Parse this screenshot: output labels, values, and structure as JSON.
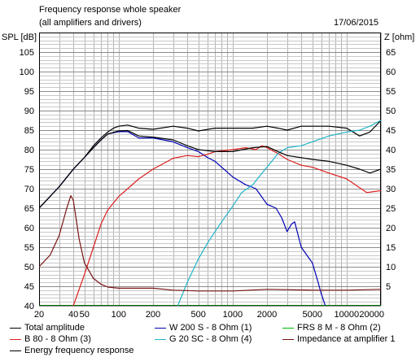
{
  "header": {
    "title": "Frequency response whole speaker",
    "subtitle": "(all amplifiers and drivers)",
    "date": "17/06/2015"
  },
  "chart_data": {
    "type": "line",
    "ylabel_left": "SPL [dB]",
    "ylabel_right": "Z [ohm]",
    "xscale": "log",
    "xlim": [
      20,
      20000
    ],
    "ylim_left": [
      40,
      110
    ],
    "ylim_right": [
      0,
      70
    ],
    "grid": true,
    "x_ticks": [
      "20",
      "50",
      "100",
      "200",
      "500",
      "1000",
      "2000",
      "5000",
      "10000",
      "20000"
    ],
    "x_tick_values": [
      20,
      50,
      100,
      200,
      500,
      1000,
      2000,
      5000,
      10000,
      20000
    ],
    "x_tick_extra": {
      "label": "40",
      "value": 40
    },
    "y_ticks_left": [
      "40",
      "45",
      "50",
      "55",
      "60",
      "65",
      "70",
      "75",
      "80",
      "85",
      "90",
      "95",
      "100",
      "105"
    ],
    "y_ticks_right": [
      "5",
      "10",
      "15",
      "20",
      "25",
      "30",
      "35",
      "40",
      "45",
      "50",
      "55",
      "60",
      "65"
    ],
    "legend_placement": "bottom",
    "series": [
      {
        "name": "Total amplitude",
        "color": "#000000",
        "axis": "left",
        "points": [
          [
            20,
            65
          ],
          [
            30,
            70.5
          ],
          [
            40,
            75
          ],
          [
            50,
            78
          ],
          [
            60,
            81
          ],
          [
            70,
            83
          ],
          [
            80,
            84.5
          ],
          [
            90,
            85.5
          ],
          [
            100,
            86
          ],
          [
            120,
            86.3
          ],
          [
            150,
            85.5
          ],
          [
            200,
            85.2
          ],
          [
            300,
            86
          ],
          [
            400,
            85.5
          ],
          [
            500,
            84.8
          ],
          [
            700,
            85.5
          ],
          [
            1000,
            85.5
          ],
          [
            1500,
            85.5
          ],
          [
            2000,
            86
          ],
          [
            2500,
            85.5
          ],
          [
            3000,
            85
          ],
          [
            4000,
            86
          ],
          [
            5000,
            86
          ],
          [
            7000,
            86
          ],
          [
            10000,
            85.5
          ],
          [
            13000,
            83.5
          ],
          [
            16000,
            84.5
          ],
          [
            20000,
            87.5
          ]
        ]
      },
      {
        "name": "W 200 S - 8 Ohm (1)",
        "color": "#0000b4",
        "axis": "left",
        "points": [
          [
            20,
            65
          ],
          [
            30,
            70.5
          ],
          [
            40,
            75
          ],
          [
            50,
            78
          ],
          [
            60,
            80.5
          ],
          [
            70,
            82.5
          ],
          [
            80,
            84
          ],
          [
            100,
            84.6
          ],
          [
            120,
            84.6
          ],
          [
            150,
            83
          ],
          [
            200,
            83
          ],
          [
            300,
            82
          ],
          [
            400,
            80.5
          ],
          [
            500,
            79.5
          ],
          [
            600,
            78
          ],
          [
            700,
            77
          ],
          [
            800,
            75.5
          ],
          [
            1000,
            73
          ],
          [
            1300,
            71
          ],
          [
            1600,
            70
          ],
          [
            2000,
            66
          ],
          [
            2400,
            65
          ],
          [
            2700,
            62.5
          ],
          [
            3000,
            59
          ],
          [
            3300,
            61
          ],
          [
            3500,
            61.5
          ],
          [
            4000,
            55
          ],
          [
            5000,
            51
          ],
          [
            5500,
            47
          ],
          [
            6000,
            43
          ],
          [
            6500,
            40
          ]
        ]
      },
      {
        "name": "FRS 8 M - 8 Ohm (2)",
        "color": "#00b400",
        "axis": "left",
        "points": [
          [
            20,
            40
          ],
          [
            20000,
            40
          ]
        ]
      },
      {
        "name": "B 80 - 8 Ohm (3)",
        "color": "#dc1e1e",
        "axis": "left",
        "points": [
          [
            40,
            40
          ],
          [
            50,
            48
          ],
          [
            60,
            55
          ],
          [
            70,
            61
          ],
          [
            80,
            64.5
          ],
          [
            100,
            68
          ],
          [
            120,
            70
          ],
          [
            150,
            72.5
          ],
          [
            200,
            75
          ],
          [
            300,
            77.8
          ],
          [
            400,
            78.5
          ],
          [
            500,
            78.2
          ],
          [
            600,
            78.8
          ],
          [
            700,
            79.5
          ],
          [
            1000,
            80
          ],
          [
            1300,
            80.5
          ],
          [
            1600,
            80
          ],
          [
            1800,
            81
          ],
          [
            2000,
            80.5
          ],
          [
            2500,
            79
          ],
          [
            3000,
            77.5
          ],
          [
            4000,
            76
          ],
          [
            5000,
            75.5
          ],
          [
            7000,
            74
          ],
          [
            10000,
            72.5
          ],
          [
            15000,
            69
          ],
          [
            20000,
            69.5
          ]
        ]
      },
      {
        "name": "G 20 SC - 8 Ohm (4)",
        "color": "#1eb4c8",
        "axis": "left",
        "points": [
          [
            330,
            40
          ],
          [
            400,
            46
          ],
          [
            500,
            52
          ],
          [
            600,
            56
          ],
          [
            700,
            59
          ],
          [
            800,
            61.5
          ],
          [
            1000,
            65.5
          ],
          [
            1200,
            69
          ],
          [
            1500,
            71
          ],
          [
            1700,
            73
          ],
          [
            2000,
            75.5
          ],
          [
            2500,
            79
          ],
          [
            3000,
            80.5
          ],
          [
            4000,
            81
          ],
          [
            5000,
            82
          ],
          [
            7000,
            83.5
          ],
          [
            10000,
            84.5
          ],
          [
            13000,
            85
          ],
          [
            16000,
            86
          ],
          [
            20000,
            87.5
          ]
        ]
      },
      {
        "name": "Impedance at amplifier 1",
        "color": "#781414",
        "axis": "right",
        "points": [
          [
            20,
            10
          ],
          [
            25,
            13
          ],
          [
            30,
            18
          ],
          [
            35,
            25
          ],
          [
            38,
            28.2
          ],
          [
            40,
            27
          ],
          [
            45,
            17
          ],
          [
            50,
            11
          ],
          [
            60,
            7
          ],
          [
            70,
            5.5
          ],
          [
            80,
            4.8
          ],
          [
            100,
            4.5
          ],
          [
            200,
            4.5
          ],
          [
            300,
            4
          ],
          [
            500,
            3.8
          ],
          [
            1000,
            3.8
          ],
          [
            2000,
            4.2
          ],
          [
            5000,
            4
          ],
          [
            10000,
            4
          ],
          [
            20000,
            4.2
          ]
        ]
      },
      {
        "name": "Energy frequency response",
        "color": "#000000",
        "axis": "left",
        "points": [
          [
            20,
            65
          ],
          [
            30,
            70.5
          ],
          [
            40,
            75
          ],
          [
            50,
            78
          ],
          [
            60,
            80.5
          ],
          [
            70,
            82.5
          ],
          [
            80,
            84
          ],
          [
            100,
            84.8
          ],
          [
            120,
            84.9
          ],
          [
            150,
            83.5
          ],
          [
            200,
            83.2
          ],
          [
            300,
            82.5
          ],
          [
            400,
            81
          ],
          [
            500,
            80
          ],
          [
            700,
            79.5
          ],
          [
            1000,
            79.5
          ],
          [
            1500,
            80.5
          ],
          [
            2000,
            80.8
          ],
          [
            2500,
            79.5
          ],
          [
            3000,
            78.5
          ],
          [
            5000,
            77.5
          ],
          [
            7000,
            77
          ],
          [
            10000,
            76
          ],
          [
            13000,
            75
          ],
          [
            16000,
            74
          ],
          [
            20000,
            75
          ]
        ]
      }
    ]
  }
}
